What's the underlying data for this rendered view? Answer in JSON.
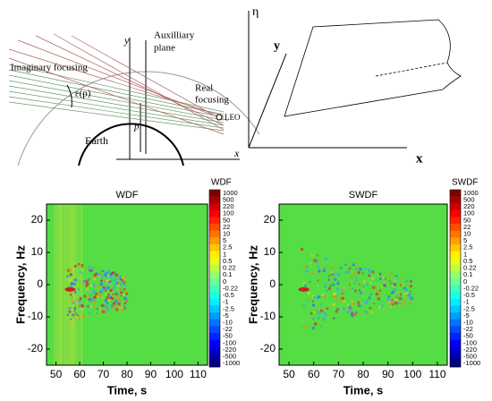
{
  "diagram_left": {
    "y_axis": "y",
    "aux_plane": [
      "Auxilliary",
      "plane"
    ],
    "imaginary": "Imaginary focusing",
    "epsilon": "ε(p)",
    "real": [
      "Real",
      "focusing"
    ],
    "leo": "LEO",
    "p": "p",
    "earth": "Earth",
    "x_axis": "x"
  },
  "diagram_right": {
    "eta": "η",
    "y": "y",
    "x": "x"
  },
  "chart_data": [
    {
      "type": "heatmap",
      "title": "WDF",
      "xlabel": "Time, s",
      "ylabel": "Frequency, Hz",
      "xlim": [
        46,
        114
      ],
      "xticks": [
        50,
        60,
        70,
        80,
        90,
        100,
        110
      ],
      "ylim": [
        -25,
        25
      ],
      "yticks": [
        -20,
        -10,
        0,
        10,
        20
      ],
      "colorbar": {
        "title": "WDF",
        "colormap": "jet",
        "levels": [
          1000,
          500,
          220,
          100,
          50,
          22,
          10,
          5,
          2.5,
          1,
          0.5,
          0.22,
          0.1,
          0,
          -0.22,
          -0.5,
          -1,
          -2.5,
          -5,
          -10,
          -22,
          -50,
          -100,
          -220,
          -500,
          -1000
        ]
      }
    },
    {
      "type": "heatmap",
      "title": "SWDF",
      "xlabel": "Time, s",
      "ylabel": "Frequency, Hz",
      "xlim": [
        46,
        114
      ],
      "xticks": [
        50,
        60,
        70,
        80,
        90,
        100,
        110
      ],
      "ylim": [
        -25,
        25
      ],
      "yticks": [
        -20,
        -10,
        0,
        10,
        20
      ],
      "colorbar": {
        "title": "SWDF",
        "colormap": "jet",
        "levels": [
          1000,
          500,
          220,
          100,
          50,
          22,
          10,
          5,
          2.5,
          1,
          0.5,
          0.22,
          0.1,
          0,
          -0.22,
          -0.5,
          -1,
          -2.5,
          -5,
          -10,
          -22,
          -50,
          -100,
          -220,
          -500,
          -1000
        ]
      }
    }
  ]
}
